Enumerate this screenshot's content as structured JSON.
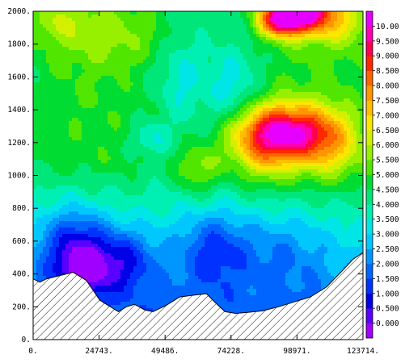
{
  "chart_data": {
    "type": "heatmap",
    "xlim": [
      0,
      123714
    ],
    "ylim": [
      0,
      2000
    ],
    "x_ticks": [
      "0.",
      "24743.",
      "49486.",
      "74228.",
      "98971.",
      "123714."
    ],
    "x_tick_values": [
      0,
      24743,
      49486,
      74228,
      98971,
      123714
    ],
    "y_ticks": [
      "0.",
      "200.",
      "400.",
      "600.",
      "800.",
      "1000.",
      "1200.",
      "1400.",
      "1600.",
      "1800.",
      "2000."
    ],
    "y_tick_values": [
      0,
      200,
      400,
      600,
      800,
      1000,
      1200,
      1400,
      1600,
      1800,
      2000
    ],
    "colorbar": {
      "labels": [
        "0.000",
        "0.500",
        "1.000",
        "1.500",
        "2.000",
        "2.500",
        "3.000",
        "3.500",
        "4.000",
        "4.500",
        "5.000",
        "5.500",
        "6.000",
        "6.500",
        "7.000",
        "7.500",
        "8.000",
        "8.500",
        "9.000",
        "9.500",
        "10.00"
      ],
      "colors": [
        "#a000ff",
        "#5a00ff",
        "#0000e6",
        "#0032ff",
        "#0064ff",
        "#0096ff",
        "#00c8ff",
        "#00e6e6",
        "#00f0b4",
        "#00e678",
        "#00dc32",
        "#50e600",
        "#96f000",
        "#d2f000",
        "#ffe600",
        "#ffbe00",
        "#ff9600",
        "#ff6400",
        "#ff2800",
        "#ff0050",
        "#ff00b4",
        "#e600ff"
      ]
    },
    "terrain": {
      "x": [
        0,
        2500,
        5000,
        10000,
        15000,
        20000,
        25000,
        30000,
        32000,
        35000,
        38000,
        42000,
        45000,
        50000,
        55000,
        60000,
        65000,
        68000,
        72000,
        76000,
        80000,
        86000,
        92000,
        98000,
        104000,
        110000,
        116000,
        120000,
        123714
      ],
      "y": [
        370,
        350,
        370,
        390,
        410,
        360,
        240,
        190,
        170,
        200,
        215,
        180,
        170,
        210,
        260,
        270,
        280,
        230,
        170,
        160,
        165,
        175,
        200,
        230,
        260,
        320,
        420,
        490,
        530
      ]
    },
    "field": [
      {
        "cx": 95000,
        "cy": 1260,
        "sx": 13000,
        "sy": 120,
        "amp": 4.8
      },
      {
        "cx": 86000,
        "cy": 1150,
        "sx": 9000,
        "sy": 180,
        "amp": 1.6
      },
      {
        "cx": 112000,
        "cy": 1160,
        "sx": 9000,
        "sy": 160,
        "amp": 1.4
      },
      {
        "cx": 100000,
        "cy": 1990,
        "sx": 9000,
        "sy": 90,
        "amp": 6.2
      },
      {
        "cx": 92000,
        "cy": 1930,
        "sx": 5000,
        "sy": 60,
        "amp": 2.5
      },
      {
        "cx": 62000,
        "cy": 1020,
        "sx": 6000,
        "sy": 110,
        "amp": 1.4
      },
      {
        "cx": 30000,
        "cy": 1850,
        "sx": 20000,
        "sy": 120,
        "amp": 0.8
      },
      {
        "cx": 8000,
        "cy": 1950,
        "sx": 6000,
        "sy": 80,
        "amp": 0.9
      },
      {
        "cx": 118000,
        "cy": 1900,
        "sx": 6000,
        "sy": 90,
        "amp": 1.1
      },
      {
        "cx": 16000,
        "cy": 560,
        "sx": 9000,
        "sy": 180,
        "amp": -2.5
      },
      {
        "cx": 34000,
        "cy": 480,
        "sx": 8000,
        "sy": 140,
        "amp": -1.8
      },
      {
        "cx": 68000,
        "cy": 560,
        "sx": 9000,
        "sy": 160,
        "amp": -1.5
      },
      {
        "cx": 20000,
        "cy": 420,
        "sx": 6000,
        "sy": 100,
        "amp": -1.6
      },
      {
        "cx": 94000,
        "cy": 560,
        "sx": 12000,
        "sy": 180,
        "amp": -0.9
      },
      {
        "cx": 55000,
        "cy": 1600,
        "sx": 6000,
        "sy": 200,
        "amp": -0.9
      },
      {
        "cx": 75000,
        "cy": 1520,
        "sx": 7000,
        "sy": 180,
        "amp": -1.1
      },
      {
        "cx": 44000,
        "cy": 1220,
        "sx": 5000,
        "sy": 70,
        "amp": -1.1
      }
    ]
  }
}
